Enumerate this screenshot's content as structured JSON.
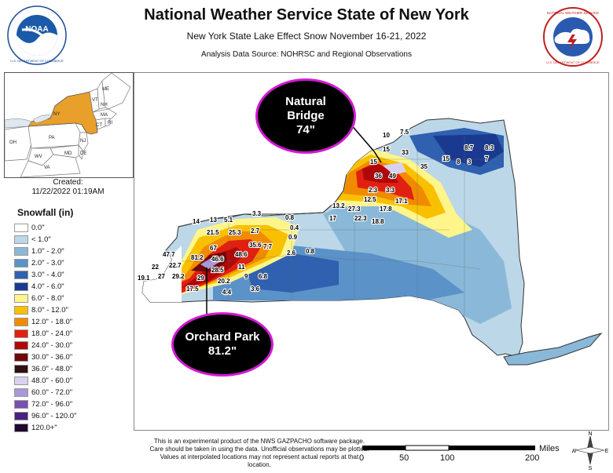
{
  "header": {
    "title": "National Weather Service State of New York",
    "subtitle": "New York State Lake Effect Snow November 16-21, 2022",
    "source": "Analysis Data Source: NOHRSC and Regional Observations"
  },
  "logos": {
    "left": {
      "center_text": "NOAA",
      "ring_text": "NATIONAL OCEANIC AND ATMOSPHERIC ADMINISTRATION",
      "bottom_text": "U.S. DEPARTMENT OF COMMERCE"
    },
    "right": {
      "ring_text": "NATIONAL WEATHER SERVICE",
      "bottom_text": "U.S. DEPARTMENT OF COMMERCE"
    }
  },
  "inset": {
    "states": [
      "ME",
      "VT",
      "NH",
      "NY",
      "MA",
      "CT",
      "RI",
      "PA",
      "NJ",
      "OH",
      "DE",
      "MD",
      "WV",
      "VA"
    ],
    "highlight_color": "#e8a02a"
  },
  "created": {
    "label": "Created:",
    "value": "11/22/2022 01:19AM"
  },
  "legend": {
    "title": "Snowfall (in)",
    "items": [
      {
        "label": "0.0\"",
        "color": "#ffffff"
      },
      {
        "label": "< 1.0\"",
        "color": "#bcd7e8"
      },
      {
        "label": "1.0\" - 2.0\"",
        "color": "#8ab8d8"
      },
      {
        "label": "2.0\" - 3.0\"",
        "color": "#5b92c8"
      },
      {
        "label": "3.0\" - 4.0\"",
        "color": "#3060b0"
      },
      {
        "label": "4.0\" - 6.0\"",
        "color": "#1a3a90"
      },
      {
        "label": "6.0\" - 8.0\"",
        "color": "#fff58a"
      },
      {
        "label": "8.0\" - 12.0\"",
        "color": "#f9c000"
      },
      {
        "label": "12.0\" - 18.0\"",
        "color": "#f08a00"
      },
      {
        "label": "18.0\" - 24.0\"",
        "color": "#e02010"
      },
      {
        "label": "24.0\" - 30.0\"",
        "color": "#b00808"
      },
      {
        "label": "30.0\" - 36.0\"",
        "color": "#700808"
      },
      {
        "label": "36.0\" - 48.0\"",
        "color": "#301010"
      },
      {
        "label": "48.0\" - 60.0\"",
        "color": "#d8d0f0"
      },
      {
        "label": "60.0\" - 72.0\"",
        "color": "#a898d8"
      },
      {
        "label": "72.0\" - 96.0\"",
        "color": "#7850b0"
      },
      {
        "label": "96.0\" - 120.0\"",
        "color": "#4a2080"
      },
      {
        "label": "120.0+\"",
        "color": "#200830"
      }
    ]
  },
  "callouts": {
    "natural_bridge": "Natural\nBridge\n74\"",
    "orchard_park": "Orchard Park\n81.2\""
  },
  "observations": [
    "10",
    "7.5",
    "15",
    "33",
    "8.7",
    "8.3",
    "15",
    "8",
    "3",
    "7",
    "15",
    "35",
    "36",
    "49",
    "2.3",
    "3.3",
    "12.5",
    "17.8",
    "17.1",
    "13.2",
    "27.3",
    "17",
    "22.3",
    "18.8",
    "3.3",
    "0.8",
    "14",
    "13",
    "5.1",
    "0.4",
    "21.5",
    "25.3",
    "2.7",
    "0.9",
    "47.7",
    "67",
    "35.6",
    "7.7",
    "2.6",
    "0.8",
    "22",
    "22.7",
    "81.2",
    "46.6",
    "48.6",
    "19.1",
    "27",
    "29.2",
    "29",
    "28.5",
    "11",
    "6.8",
    "17.5",
    "20.2",
    "9",
    "4.4",
    "3.6"
  ],
  "disclaimer": "This is an experimental product of the NWS GAZPACHO software package. Care should be taken in using the data. Unofficial observations may be plotted. Values at interpolated locations may not represent actual reports at that location.",
  "scale": {
    "unit": "Miles",
    "labels": [
      "0",
      "50",
      "100",
      "200"
    ]
  },
  "compass": {
    "n": "N",
    "s": "S",
    "e": "E",
    "w": "W"
  }
}
